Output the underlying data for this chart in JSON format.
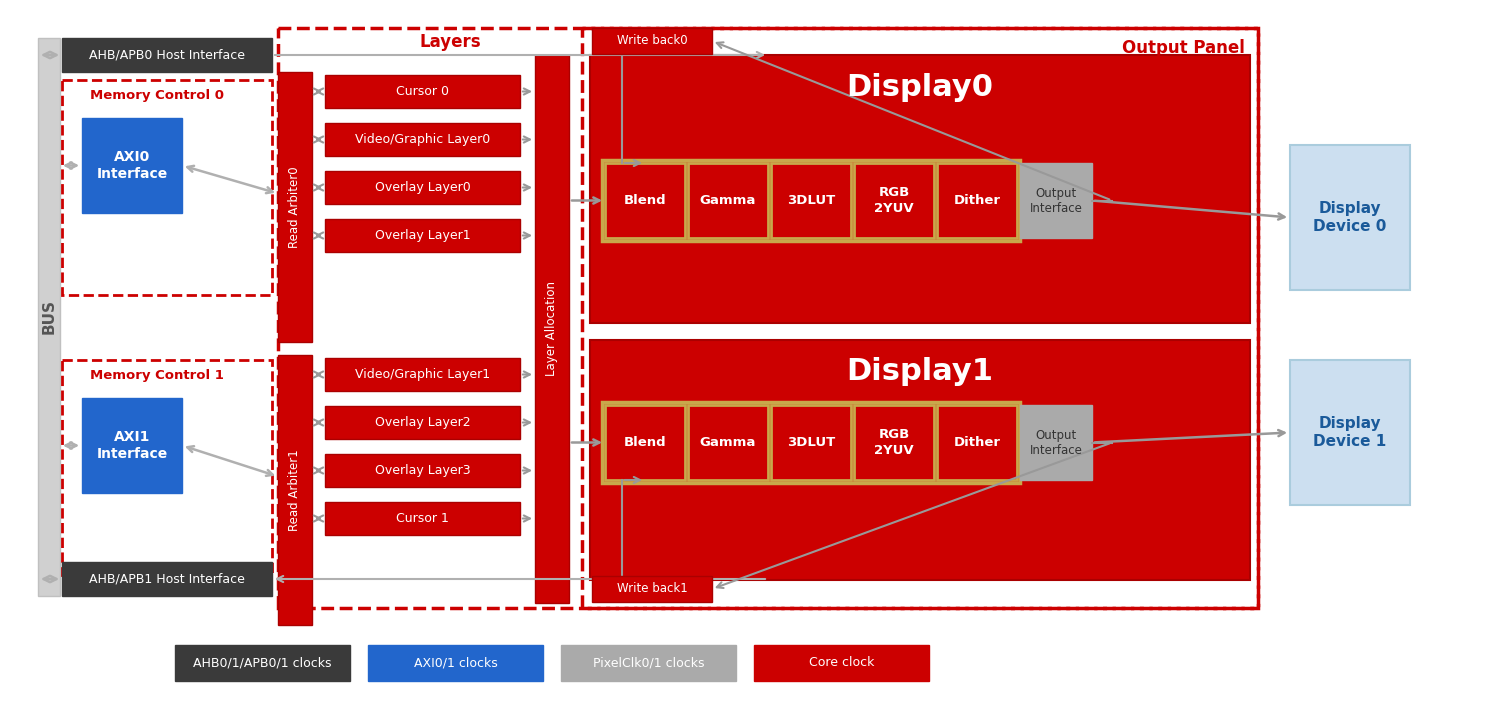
{
  "bg_color": "#ffffff",
  "red": "#cc0000",
  "dark_red": "#aa0000",
  "gold": "#c8a84b",
  "blue": "#2266cc",
  "light_blue": "#ccdff0",
  "dark_gray": "#3a3a3a",
  "gray": "#999999",
  "light_gray": "#b0b0b0",
  "silver": "#aaaaaa",
  "white": "#ffffff",
  "output_panel_label": "Output Panel",
  "layers_label": "Layers",
  "layer_alloc_label": "Layer Allocation",
  "write_back0": "Write back0",
  "write_back1": "Write back1",
  "bus_label": "BUS",
  "display0_label": "Display0",
  "display1_label": "Display1",
  "ahb0_label": "AHB/APB0 Host Interface",
  "ahb1_label": "AHB/APB1 Host Interface",
  "mem0_label": "Memory Control 0",
  "mem1_label": "Memory Control 1",
  "axi0_label": "AXI0\nInterface",
  "axi1_label": "AXI1\nInterface",
  "arbiter0_label": "Read Arbiter0",
  "arbiter1_label": "Read Arbiter1",
  "top_layer_names": [
    "Cursor 0",
    "Video/Graphic Layer0",
    "Overlay Layer0",
    "Overlay Layer1"
  ],
  "bot_layer_names": [
    "Video/Graphic Layer1",
    "Overlay Layer2",
    "Overlay Layer3",
    "Cursor 1"
  ],
  "display_stages": [
    "Blend",
    "Gamma",
    "3DLUT",
    "RGB\n2YUV",
    "Dither"
  ],
  "output_if_label": "Output\nInterface",
  "display_dev0": "Display\nDevice 0",
  "display_dev1": "Display\nDevice 1",
  "legend_items": [
    {
      "label": "AHB0/1/APB0/1 clocks",
      "color": "#3a3a3a"
    },
    {
      "label": "AXI0/1 clocks",
      "color": "#2266cc"
    },
    {
      "label": "PixelClk0/1 clocks",
      "color": "#aaaaaa"
    },
    {
      "label": "Core clock",
      "color": "#cc0000"
    }
  ]
}
